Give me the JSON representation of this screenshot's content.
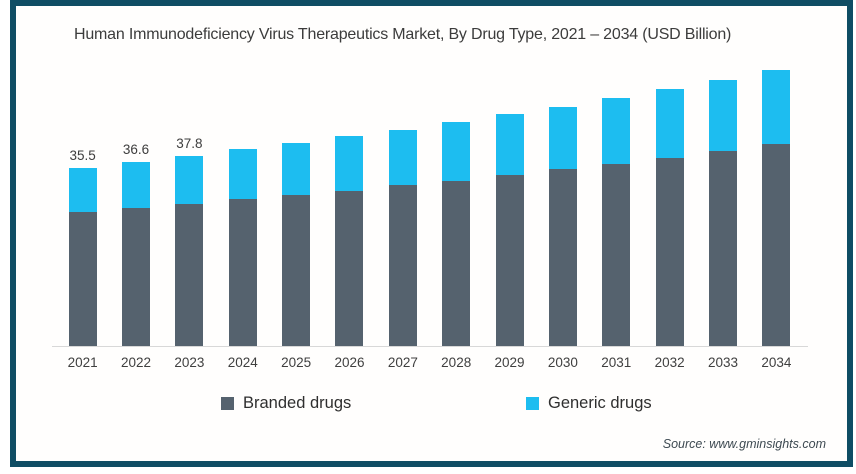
{
  "page": {
    "background": "#ffffff",
    "frame_border_color": "#0f4d64"
  },
  "header": {
    "title": "Human Immunodeficiency Virus Therapeutics Market, By Drug Type, 2021 – 2034 (USD Billion)"
  },
  "chart_data": {
    "type": "bar",
    "stacked": true,
    "title": "Human Immunodeficiency Virus Therapeutics Market, By Drug Type, 2021 – 2034 (USD Billion)",
    "xlabel": "",
    "ylabel": "",
    "categories": [
      "2021",
      "2022",
      "2023",
      "2024",
      "2025",
      "2026",
      "2027",
      "2028",
      "2029",
      "2030",
      "2031",
      "2032",
      "2033",
      "2034"
    ],
    "series": [
      {
        "name": "Branded drugs",
        "color": "#55626e",
        "values": [
          26.7,
          27.5,
          28.3,
          29.3,
          30.0,
          30.9,
          32.1,
          32.9,
          34.0,
          35.2,
          36.3,
          37.4,
          38.8,
          40.2
        ]
      },
      {
        "name": "Generic drugs",
        "color": "#1dbdf0",
        "values": [
          8.8,
          9.1,
          9.5,
          9.9,
          10.4,
          10.9,
          10.9,
          11.7,
          12.1,
          12.4,
          13.1,
          13.7,
          14.2,
          14.8
        ]
      }
    ],
    "totals": [
      35.5,
      36.6,
      37.8,
      39.2,
      40.4,
      41.8,
      43.0,
      44.6,
      46.1,
      47.6,
      49.4,
      51.1,
      53.0,
      55.0
    ],
    "bar_labels": [
      "35.5",
      "36.6",
      "37.8",
      "",
      "",
      "",
      "",
      "",
      "",
      "",
      "",
      "",
      "",
      ""
    ],
    "ylim": [
      0,
      56
    ],
    "grid": false,
    "axis_line_color": "#d8d8d8",
    "legend_position": "bottom"
  },
  "footer": {
    "source": "Source: www.gminsights.com"
  }
}
